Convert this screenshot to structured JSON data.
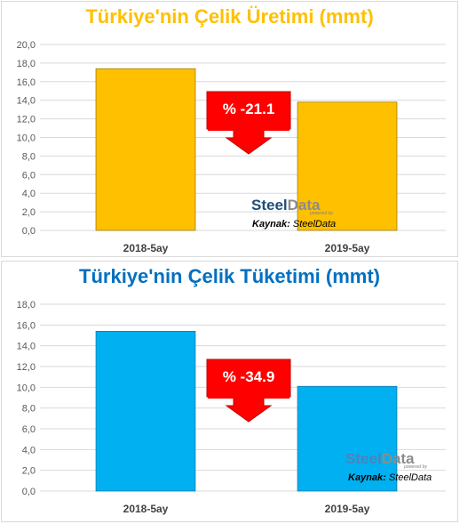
{
  "chart_data": [
    {
      "type": "bar",
      "title": "Türkiye'nin Çelik Üretimi (mmt)",
      "categories": [
        "2018-5ay",
        "2019-5ay"
      ],
      "values": [
        17.4,
        13.8
      ],
      "ylim": [
        0,
        20
      ],
      "yticks": [
        "0,0",
        "2,0",
        "4,0",
        "6,0",
        "8,0",
        "10,0",
        "12,0",
        "14,0",
        "16,0",
        "18,0",
        "20,0"
      ],
      "grid": true,
      "bar_color": "#FFC000",
      "title_color": "#FFC000",
      "annotation": "% -21.1",
      "brand": {
        "steel": "Steel",
        "data": "Data",
        "tagline": "powered by"
      },
      "source": {
        "label": "Kaynak:",
        "value": "SteelData"
      }
    },
    {
      "type": "bar",
      "title": "Türkiye'nin Çelik Tüketimi (mmt)",
      "categories": [
        "2018-5ay",
        "2019-5ay"
      ],
      "values": [
        15.4,
        10.1
      ],
      "ylim": [
        0,
        18
      ],
      "yticks": [
        "0,0",
        "2,0",
        "4,0",
        "6,0",
        "8,0",
        "10,0",
        "12,0",
        "14,0",
        "16,0",
        "18,0"
      ],
      "grid": true,
      "bar_color": "#00B0F0",
      "title_color": "#0070C0",
      "annotation": "% -34.9",
      "brand": {
        "steel": "Steel",
        "data": "Data",
        "tagline": "powered by"
      },
      "source": {
        "label": "Kaynak:",
        "value": "SteelData"
      }
    }
  ]
}
